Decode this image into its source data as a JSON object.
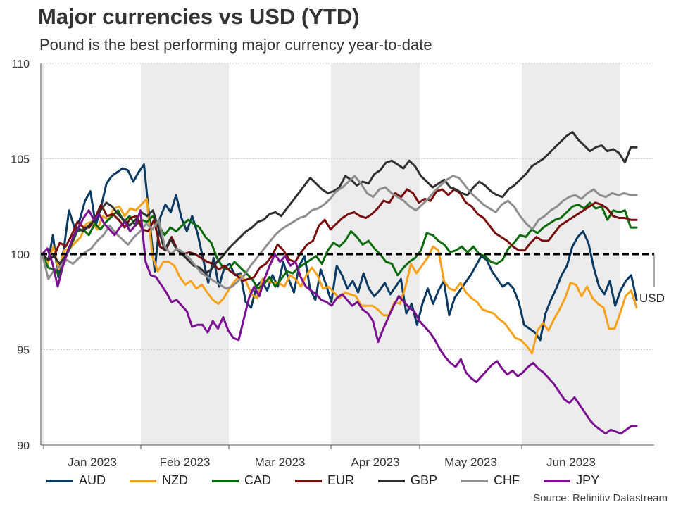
{
  "title": "Major currencies vs USD (YTD)",
  "subtitle": "Pound is the best performing major currency year-to-date",
  "source": "Source: Refinitiv Datastream",
  "chart_data": {
    "type": "line",
    "ylim": [
      90,
      110
    ],
    "yticks": [
      90,
      95,
      100,
      105,
      110
    ],
    "baseline": 100,
    "baseline_label": "USD",
    "months": [
      "Jan 2023",
      "Feb 2023",
      "Mar 2023",
      "Apr 2023",
      "May 2023",
      "Jun 2023"
    ],
    "grid": true,
    "series": [
      {
        "name": "AUD",
        "color": "#0b3a63",
        "values": [
          100.0,
          99.5,
          101.0,
          98.8,
          100.2,
          102.3,
          101.4,
          101.8,
          102.8,
          103.3,
          101.5,
          102.5,
          103.7,
          104.1,
          104.3,
          104.5,
          104.4,
          103.8,
          104.3,
          104.7,
          101.9,
          99.1,
          101.9,
          102.6,
          102.2,
          103.1,
          101.9,
          101.2,
          102.0,
          101.1,
          99.8,
          98.5,
          99.8,
          98.3,
          99.3,
          99.5,
          98.9,
          99.0,
          97.5,
          97.2,
          98.3,
          98.6,
          98.1,
          98.9,
          98.3,
          99.6,
          98.7,
          98.0,
          99.4,
          99.9,
          98.2,
          97.6,
          99.2,
          98.4,
          97.5,
          99.4,
          98.9,
          98.2,
          98.6,
          98.0,
          99.0,
          98.2,
          97.8,
          98.1,
          98.5,
          97.9,
          98.3,
          98.7,
          96.9,
          97.4,
          96.3,
          97.4,
          98.2,
          97.4,
          98.1,
          98.6,
          96.8,
          97.7,
          98.1,
          98.5,
          98.9,
          99.4,
          99.9,
          99.7,
          99.1,
          98.7,
          98.3,
          98.5,
          98.2,
          97.5,
          96.3,
          96.1,
          95.9,
          95.5,
          96.9,
          97.6,
          98.2,
          98.9,
          99.4,
          100.4,
          100.9,
          101.2,
          100.6,
          99.3,
          98.3,
          97.9,
          98.6,
          97.3,
          98.1,
          98.6,
          98.9,
          97.6
        ]
      },
      {
        "name": "NZD",
        "color": "#f7a11a",
        "values": [
          100.0,
          99.5,
          100.4,
          99.2,
          100.2,
          100.3,
          100.6,
          100.9,
          101.6,
          101.7,
          101.3,
          102.0,
          101.8,
          102.4,
          102.5,
          102.0,
          102.4,
          102.3,
          102.6,
          102.9,
          99.9,
          99.1,
          99.6,
          99.6,
          99.4,
          98.8,
          98.4,
          98.6,
          98.2,
          98.4,
          98.0,
          97.6,
          97.4,
          97.7,
          98.2,
          98.6,
          98.9,
          98.6,
          97.9,
          97.7,
          98.7,
          98.6,
          98.5,
          98.5,
          98.3,
          98.9,
          98.7,
          98.3,
          98.9,
          99.3,
          98.9,
          98.2,
          98.3,
          98.0,
          97.7,
          98.0,
          97.9,
          97.8,
          97.3,
          97.3,
          97.3,
          97.1,
          96.8,
          96.8,
          97.5,
          97.4,
          98.3,
          99.5,
          99.0,
          99.4,
          99.8,
          100.4,
          100.2,
          98.6,
          98.2,
          98.1,
          98.5,
          98.0,
          97.7,
          97.5,
          97.1,
          97.0,
          96.9,
          96.6,
          96.4,
          96.0,
          95.6,
          95.5,
          95.2,
          94.8,
          96.0,
          96.4,
          96.0,
          96.6,
          97.1,
          97.7,
          98.5,
          98.4,
          97.8,
          98.3,
          97.7,
          97.4,
          97.2,
          96.1,
          96.1,
          96.9,
          97.8,
          98.1,
          97.2
        ]
      },
      {
        "name": "CAD",
        "color": "#0a6b0a",
        "values": [
          100.0,
          99.3,
          99.2,
          98.9,
          99.8,
          100.5,
          101.2,
          101.3,
          101.0,
          101.6,
          101.3,
          101.7,
          102.0,
          102.3,
          101.7,
          102.0,
          101.5,
          101.8,
          101.7,
          102.0,
          101.5,
          101.0,
          101.4,
          101.2,
          101.5,
          101.8,
          101.6,
          101.4,
          100.9,
          100.6,
          99.8,
          99.3,
          99.2,
          99.6,
          99.3,
          99.0,
          98.7,
          98.2,
          98.4,
          98.8,
          98.3,
          98.7,
          99.1,
          99.0,
          99.3,
          99.5,
          99.7,
          99.9,
          99.5,
          100.2,
          100.6,
          100.4,
          100.7,
          101.2,
          100.9,
          100.5,
          100.7,
          100.3,
          100.0,
          99.6,
          99.5,
          98.9,
          99.3,
          99.6,
          99.8,
          100.2,
          101.1,
          101.0,
          100.7,
          100.5,
          100.1,
          100.2,
          100.4,
          100.1,
          100.4,
          100.0,
          99.9,
          99.6,
          99.5,
          99.7,
          100.3,
          100.6,
          101.0,
          100.9,
          101.3,
          101.1,
          101.4,
          101.6,
          101.8,
          101.9,
          102.2,
          102.5,
          102.6,
          102.4,
          102.7,
          102.4,
          102.5,
          101.8,
          102.3,
          102.2,
          102.3,
          101.4,
          101.4
        ]
      },
      {
        "name": "EUR",
        "color": "#7a0d0d",
        "values": [
          100.0,
          99.7,
          99.9,
          100.6,
          100.4,
          101.0,
          101.7,
          101.4,
          101.4,
          101.9,
          102.6,
          102.0,
          102.1,
          101.8,
          101.4,
          101.9,
          102.0,
          101.3,
          101.2,
          101.8,
          100.4,
          100.2,
          100.9,
          100.2,
          100.0,
          100.1,
          100.0,
          99.8,
          99.6,
          99.5,
          99.2,
          99.4,
          99.1,
          98.9,
          98.6,
          98.7,
          98.8,
          99.3,
          99.5,
          99.9,
          100.5,
          100.2,
          99.7,
          99.6,
          100.1,
          100.5,
          100.7,
          101.5,
          101.8,
          101.3,
          101.6,
          101.9,
          102.1,
          102.2,
          102.0,
          101.9,
          102.1,
          102.4,
          102.8,
          102.7,
          103.2,
          103.0,
          103.4,
          103.2,
          102.7,
          102.9,
          102.8,
          103.3,
          103.4,
          103.1,
          103.4,
          103.2,
          102.7,
          102.5,
          102.1,
          101.9,
          101.5,
          101.1,
          100.9,
          100.7,
          100.4,
          100.2,
          100.2,
          100.6,
          100.9,
          100.7,
          100.7,
          101.1,
          101.5,
          101.7,
          101.9,
          102.1,
          102.3,
          102.5,
          102.7,
          102.6,
          102.4,
          102.0,
          101.9,
          101.9,
          101.8,
          101.8
        ]
      },
      {
        "name": "GBP",
        "color": "#303030",
        "values": [
          100.0,
          99.7,
          99.9,
          99.5,
          99.9,
          100.6,
          101.4,
          101.2,
          101.5,
          101.8,
          102.3,
          102.7,
          102.5,
          102.1,
          101.8,
          101.5,
          101.8,
          102.2,
          102.0,
          102.3,
          101.3,
          100.2,
          100.8,
          100.3,
          100.0,
          99.7,
          99.4,
          99.3,
          99.0,
          99.2,
          99.6,
          99.9,
          100.3,
          100.6,
          100.9,
          101.2,
          101.4,
          101.7,
          101.8,
          102.1,
          102.2,
          102.0,
          102.4,
          102.8,
          103.2,
          103.6,
          104.0,
          103.7,
          103.4,
          103.2,
          103.3,
          103.5,
          104.1,
          103.9,
          103.6,
          103.8,
          103.7,
          104.2,
          104.4,
          104.8,
          104.9,
          104.7,
          104.5,
          104.9,
          104.6,
          104.1,
          103.8,
          103.5,
          103.7,
          103.9,
          103.5,
          103.4,
          103.2,
          103.1,
          103.5,
          103.8,
          103.6,
          103.3,
          103.1,
          103.0,
          103.4,
          103.6,
          103.9,
          104.2,
          104.6,
          104.8,
          105.0,
          105.3,
          105.6,
          105.9,
          106.2,
          106.4,
          106.0,
          105.7,
          105.4,
          105.6,
          105.7,
          105.4,
          105.5,
          105.3,
          104.8,
          105.6,
          105.6
        ]
      },
      {
        "name": "CHF",
        "color": "#8e8e8e",
        "values": [
          100.0,
          98.7,
          99.2,
          99.4,
          99.7,
          99.5,
          99.8,
          100.1,
          100.3,
          100.7,
          101.0,
          101.5,
          101.1,
          100.8,
          100.5,
          100.9,
          101.2,
          101.6,
          101.3,
          101.8,
          100.4,
          100.0,
          100.3,
          100.1,
          99.8,
          99.4,
          99.0,
          98.8,
          98.6,
          98.4,
          98.2,
          98.3,
          98.6,
          98.9,
          99.4,
          99.8,
          100.2,
          100.6,
          101.0,
          101.3,
          101.5,
          101.7,
          101.9,
          102.0,
          102.3,
          102.4,
          102.6,
          102.9,
          103.3,
          103.5,
          103.8,
          104.1,
          103.7,
          103.2,
          103.0,
          103.4,
          103.5,
          103.2,
          103.0,
          102.8,
          102.5,
          102.3,
          102.6,
          102.9,
          103.3,
          103.6,
          103.9,
          104.1,
          104.0,
          103.6,
          103.2,
          102.9,
          102.6,
          102.4,
          102.2,
          102.6,
          102.8,
          102.5,
          102.0,
          101.6,
          101.3,
          101.8,
          102.0,
          102.3,
          102.5,
          102.8,
          103.0,
          103.1,
          102.9,
          103.2,
          103.4,
          103.1,
          103.0,
          103.2,
          103.1,
          103.2,
          103.1,
          103.1
        ]
      },
      {
        "name": "JPY",
        "color": "#7b1191",
        "values": [
          100.0,
          100.3,
          99.5,
          98.3,
          99.4,
          100.2,
          100.9,
          101.4,
          101.9,
          102.3,
          101.8,
          102.1,
          101.6,
          101.3,
          101.0,
          101.4,
          101.7,
          101.2,
          101.5,
          102.3,
          99.6,
          98.9,
          98.8,
          98.4,
          98.0,
          97.5,
          97.6,
          97.3,
          97.0,
          96.2,
          96.3,
          96.3,
          95.9,
          96.5,
          96.1,
          96.7,
          96.0,
          95.6,
          95.5,
          96.6,
          97.7,
          98.3,
          97.8,
          98.7,
          99.4,
          100.0,
          99.6,
          99.9,
          99.4,
          99.6,
          98.8,
          98.3,
          98.1,
          97.9,
          97.6,
          97.5,
          97.3,
          97.7,
          97.9,
          97.6,
          97.3,
          97.5,
          97.1,
          96.9,
          96.5,
          95.4,
          96.1,
          96.7,
          97.3,
          97.8,
          97.5,
          97.2,
          97.0,
          96.5,
          96.2,
          95.9,
          95.5,
          95.0,
          94.6,
          94.3,
          94.1,
          94.5,
          93.8,
          93.5,
          93.3,
          93.6,
          93.9,
          94.2,
          94.4,
          94.0,
          93.7,
          93.9,
          93.6,
          93.8,
          94.1,
          94.3,
          94.0,
          93.8,
          93.5,
          93.2,
          92.8,
          92.4,
          92.2,
          92.5,
          92.1,
          91.7,
          91.3,
          91.0,
          90.8,
          90.6,
          90.8,
          90.7,
          90.6,
          90.8,
          91.0,
          91.0
        ]
      }
    ]
  }
}
